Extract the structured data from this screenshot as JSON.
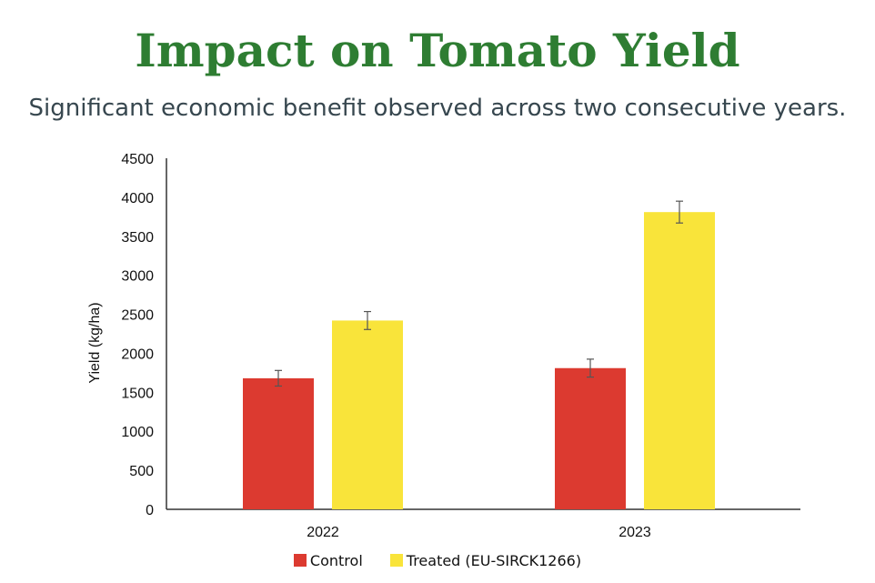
{
  "chart_data": {
    "type": "bar",
    "title": "Impact on Tomato Yield",
    "subtitle": "Significant economic benefit observed across two consecutive years.",
    "xlabel": "",
    "ylabel": "Yield (kg/ha)",
    "ylim": [
      0,
      4500
    ],
    "yticks": [
      "0",
      "500",
      "1000",
      "1500",
      "2000",
      "2500",
      "3000",
      "3500",
      "4000",
      "4500"
    ],
    "categories": [
      "2022",
      "2023"
    ],
    "series": [
      {
        "name": "Control",
        "color": "#dc3a30",
        "values": [
          1680,
          1810
        ],
        "errors": [
          100,
          115
        ]
      },
      {
        "name": "Treated (EU-SIRCK1266)",
        "color": "#f9e43a",
        "values": [
          2420,
          3810
        ],
        "errors": [
          115,
          140
        ]
      }
    ],
    "grid": false,
    "legend_position": "bottom"
  }
}
